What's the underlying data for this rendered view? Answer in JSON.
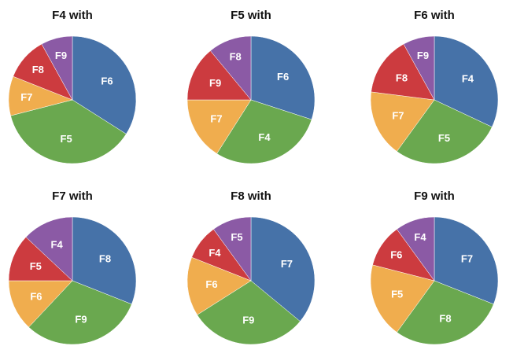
{
  "colors": {
    "blue": "#4672a8",
    "green": "#6aa84f",
    "orange": "#f0ad4e",
    "red": "#cc3b3f",
    "purple": "#8b5aa5",
    "stroke": "#ffffff",
    "title": "#111111",
    "label": "#ffffff"
  },
  "chart_data": [
    {
      "type": "pie",
      "title": "F4 with",
      "slices": [
        {
          "label": "F6",
          "value": 34,
          "color": "blue"
        },
        {
          "label": "F5",
          "value": 37,
          "color": "green"
        },
        {
          "label": "F7",
          "value": 10,
          "color": "orange"
        },
        {
          "label": "F8",
          "value": 11,
          "color": "red"
        },
        {
          "label": "F9",
          "value": 8,
          "color": "purple"
        }
      ]
    },
    {
      "type": "pie",
      "title": "F5 with",
      "slices": [
        {
          "label": "F6",
          "value": 30,
          "color": "blue"
        },
        {
          "label": "F4",
          "value": 29,
          "color": "green"
        },
        {
          "label": "F7",
          "value": 16,
          "color": "orange"
        },
        {
          "label": "F9",
          "value": 14,
          "color": "red"
        },
        {
          "label": "F8",
          "value": 11,
          "color": "purple"
        }
      ]
    },
    {
      "type": "pie",
      "title": "F6 with",
      "slices": [
        {
          "label": "F4",
          "value": 32,
          "color": "blue"
        },
        {
          "label": "F5",
          "value": 28,
          "color": "green"
        },
        {
          "label": "F7",
          "value": 17,
          "color": "orange"
        },
        {
          "label": "F8",
          "value": 15,
          "color": "red"
        },
        {
          "label": "F9",
          "value": 8,
          "color": "purple"
        }
      ]
    },
    {
      "type": "pie",
      "title": "F7 with",
      "slices": [
        {
          "label": "F8",
          "value": 31,
          "color": "blue"
        },
        {
          "label": "F9",
          "value": 31,
          "color": "green"
        },
        {
          "label": "F6",
          "value": 13,
          "color": "orange"
        },
        {
          "label": "F5",
          "value": 12,
          "color": "red"
        },
        {
          "label": "F4",
          "value": 13,
          "color": "purple"
        }
      ]
    },
    {
      "type": "pie",
      "title": "F8 with",
      "slices": [
        {
          "label": "F7",
          "value": 36,
          "color": "blue"
        },
        {
          "label": "F9",
          "value": 30,
          "color": "green"
        },
        {
          "label": "F6",
          "value": 15,
          "color": "orange"
        },
        {
          "label": "F4",
          "value": 9,
          "color": "red"
        },
        {
          "label": "F5",
          "value": 10,
          "color": "purple"
        }
      ]
    },
    {
      "type": "pie",
      "title": "F9 with",
      "slices": [
        {
          "label": "F7",
          "value": 31,
          "color": "blue"
        },
        {
          "label": "F8",
          "value": 29,
          "color": "green"
        },
        {
          "label": "F5",
          "value": 19,
          "color": "orange"
        },
        {
          "label": "F6",
          "value": 11,
          "color": "red"
        },
        {
          "label": "F4",
          "value": 10,
          "color": "purple"
        }
      ]
    }
  ]
}
